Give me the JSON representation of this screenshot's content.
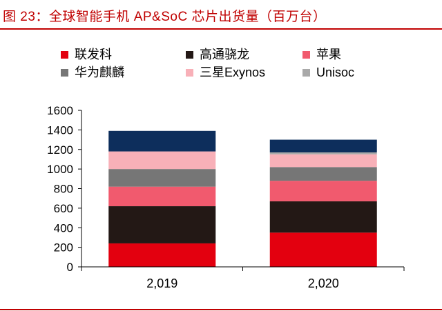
{
  "figure": {
    "title": "图 23：全球智能手机 AP&SoC 芯片出货量（百万台）"
  },
  "chart_data": {
    "type": "bar",
    "stacked": true,
    "categories": [
      "2,019",
      "2,020"
    ],
    "series": [
      {
        "name": "联发科",
        "color": "#e3000f",
        "values": [
          240,
          350
        ]
      },
      {
        "name": "高通骁龙",
        "color": "#231815",
        "values": [
          380,
          320
        ]
      },
      {
        "name": "苹果",
        "color": "#f15a6e",
        "values": [
          200,
          210
        ]
      },
      {
        "name": "华为麒麟",
        "color": "#767676",
        "values": [
          180,
          140
        ]
      },
      {
        "name": "三星Exynos",
        "color": "#f8b0b8",
        "values": [
          180,
          130
        ]
      },
      {
        "name": "Unisoc",
        "color": "#a9a9a9",
        "values": [
          0,
          20
        ]
      },
      {
        "name": "",
        "color": "#0d2e5c",
        "values": [
          210,
          130
        ]
      }
    ],
    "ylim": [
      0,
      1600
    ],
    "yticks": [
      "0",
      "200",
      "400",
      "600",
      "800",
      "1000",
      "1200",
      "1400",
      "1600"
    ],
    "xlabel": "",
    "ylabel": "",
    "grid": false,
    "legend_position": "top"
  }
}
